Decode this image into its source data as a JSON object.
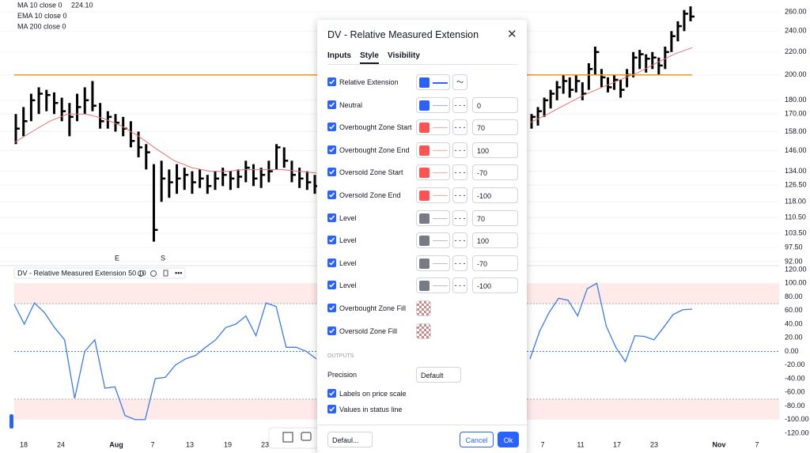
{
  "legend": [
    {
      "text": "MA 10 close 0",
      "value": "224.10"
    },
    {
      "text": "EMA 10 close 0"
    },
    {
      "text": "MA 200 close 0"
    }
  ],
  "price_axis": {
    "log": true,
    "ticks": [
      {
        "value": 260,
        "label": "260.00"
      },
      {
        "value": 240,
        "label": "240.00"
      },
      {
        "value": 220,
        "label": "220.00"
      },
      {
        "value": 200,
        "label": "200.00"
      },
      {
        "value": 180,
        "label": "180.00"
      },
      {
        "value": 170,
        "label": "170.00"
      },
      {
        "value": 158,
        "label": "158.00"
      },
      {
        "value": 146,
        "label": "146.00"
      },
      {
        "value": 134,
        "label": "134.00"
      },
      {
        "value": 126.5,
        "label": "126.50"
      },
      {
        "value": 118,
        "label": "118.00"
      },
      {
        "value": 110.5,
        "label": "110.50"
      },
      {
        "value": 103.5,
        "label": "103.50"
      },
      {
        "value": 97.5,
        "label": "97.50"
      },
      {
        "value": 92,
        "label": "92.00"
      }
    ]
  },
  "price_bars": {
    "left": [
      [
        170,
        150,
        160
      ],
      [
        175,
        155,
        165
      ],
      [
        185,
        165,
        180
      ],
      [
        190,
        170,
        185
      ],
      [
        188,
        172,
        184
      ],
      [
        186,
        170,
        178
      ],
      [
        182,
        165,
        172
      ],
      [
        178,
        155,
        168
      ],
      [
        185,
        165,
        175
      ],
      [
        190,
        170,
        180
      ],
      [
        195,
        172,
        176
      ],
      [
        178,
        160,
        165
      ],
      [
        172,
        160,
        168
      ],
      [
        170,
        158,
        164
      ],
      [
        168,
        155,
        160
      ],
      [
        165,
        148,
        152
      ],
      [
        158,
        142,
        148
      ],
      [
        150,
        135,
        145
      ],
      [
        138,
        100,
        105
      ],
      [
        140,
        118,
        130
      ],
      [
        135,
        120,
        128
      ],
      [
        138,
        122,
        130
      ],
      [
        136,
        124,
        132
      ],
      [
        134,
        122,
        128
      ],
      [
        135,
        125,
        130
      ],
      [
        132,
        122,
        126
      ],
      [
        134,
        124,
        130
      ],
      [
        136,
        126,
        132
      ],
      [
        134,
        124,
        130
      ],
      [
        135,
        125,
        131
      ],
      [
        140,
        128,
        136
      ],
      [
        138,
        126,
        130
      ],
      [
        136,
        125,
        132
      ],
      [
        140,
        128,
        134
      ],
      [
        150,
        135,
        148
      ],
      [
        148,
        136,
        140
      ],
      [
        140,
        128,
        132
      ],
      [
        136,
        125,
        130
      ],
      [
        134,
        124,
        128
      ],
      [
        132,
        122,
        126
      ]
    ],
    "right": [
      [
        170,
        160,
        168
      ],
      [
        175,
        162,
        172
      ],
      [
        182,
        168,
        180
      ],
      [
        188,
        174,
        185
      ],
      [
        195,
        180,
        190
      ],
      [
        200,
        185,
        195
      ],
      [
        198,
        182,
        188
      ],
      [
        200,
        186,
        195
      ],
      [
        194,
        180,
        185
      ],
      [
        210,
        188,
        205
      ],
      [
        225,
        200,
        220
      ],
      [
        205,
        190,
        198
      ],
      [
        198,
        186,
        190
      ],
      [
        200,
        188,
        196
      ],
      [
        196,
        182,
        188
      ],
      [
        205,
        190,
        200
      ],
      [
        220,
        198,
        215
      ],
      [
        222,
        205,
        218
      ],
      [
        218,
        202,
        214
      ],
      [
        220,
        205,
        215
      ],
      [
        215,
        200,
        208
      ],
      [
        225,
        205,
        220
      ],
      [
        240,
        220,
        235
      ],
      [
        250,
        230,
        245
      ],
      [
        262,
        240,
        258
      ],
      [
        266,
        250,
        255
      ]
    ]
  },
  "ma": {
    "color": "#e57373",
    "left": [
      151,
      158,
      165,
      170,
      170,
      167,
      162,
      155,
      147,
      140,
      136,
      134,
      134,
      135,
      135,
      135,
      134,
      133
    ],
    "right": [
      164,
      170,
      177,
      184,
      190,
      196,
      202,
      210,
      218,
      224
    ]
  },
  "level_line": {
    "value": 200,
    "color": "#f7931a"
  },
  "markers": [
    {
      "text": "E",
      "color": "#e65100"
    },
    {
      "text": "S",
      "color": "#f7931a"
    }
  ],
  "indicator": {
    "label": "DV - Relative Measured Extension 50 10",
    "color": "#3d7be8",
    "ticks": [
      {
        "value": 120,
        "label": "120.00"
      },
      {
        "value": 100,
        "label": "100.00"
      },
      {
        "value": 80,
        "label": "80.00"
      },
      {
        "value": 60,
        "label": "60.00"
      },
      {
        "value": 40,
        "label": "40.00"
      },
      {
        "value": 20,
        "label": "20.00"
      },
      {
        "value": 0,
        "label": "0.00"
      },
      {
        "value": -20,
        "label": "-20.00"
      },
      {
        "value": -40,
        "label": "-40.00"
      },
      {
        "value": -60,
        "label": "-60.00"
      },
      {
        "value": -80,
        "label": "-80.00"
      },
      {
        "value": -100,
        "label": "-100.00"
      },
      {
        "value": -120,
        "label": "-120.00"
      }
    ],
    "overbought": [
      70,
      100
    ],
    "oversold": [
      -70,
      -100
    ],
    "neutral": 0,
    "left": [
      69,
      40,
      71,
      57,
      35,
      17,
      -69,
      0,
      17,
      -54,
      -52,
      -94,
      -100,
      -100,
      -40,
      -38,
      -20,
      -11,
      -6,
      6,
      17,
      35,
      40,
      52,
      23,
      71,
      66,
      6,
      6,
      0,
      -11
    ],
    "right": [
      -11,
      29,
      57,
      78,
      75,
      52,
      92,
      100,
      37,
      6,
      -15,
      23,
      22,
      17,
      35,
      54,
      61,
      62
    ]
  },
  "time_axis": [
    "18",
    "24",
    "Aug",
    "7",
    "13",
    "19",
    "23",
    "7",
    "11",
    "17",
    "23",
    "Nov",
    "7"
  ],
  "dialog": {
    "title": "DV - Relative Measured Extension",
    "tabs": [
      "Inputs",
      "Style",
      "Visibility"
    ],
    "rows": [
      {
        "label": "Relative Extension",
        "color": "#2962ff",
        "style": "line"
      },
      {
        "label": "Neutral",
        "color": "#2962ff",
        "style": "thin",
        "input": "0"
      },
      {
        "label": "Overbought Zone Start",
        "color": "#ff5252",
        "style": "thin",
        "input": "70"
      },
      {
        "label": "Overbought Zone End",
        "color": "#ff5252",
        "style": "thin",
        "input": "100"
      },
      {
        "label": "Oversold Zone Start",
        "color": "#ff5252",
        "style": "thin",
        "input": "-70"
      },
      {
        "label": "Oversold Zone End",
        "color": "#ff5252",
        "style": "thin",
        "input": "-100"
      },
      {
        "label": "Level",
        "color": "#787b86",
        "style": "thin",
        "input": "70"
      },
      {
        "label": "Level",
        "color": "#787b86",
        "style": "thin",
        "input": "100"
      },
      {
        "label": "Level",
        "color": "#787b86",
        "style": "thin",
        "input": "-70"
      },
      {
        "label": "Level",
        "color": "#787b86",
        "style": "thin",
        "input": "-100"
      },
      {
        "label": "Overbought Zone Fill",
        "style": "fill"
      },
      {
        "label": "Oversold Zone Fill",
        "style": "fill"
      }
    ],
    "outputs": "OUTPUTS",
    "precision_label": "Precision",
    "precision_value": "Default",
    "labels_on_price_scale": "Labels on price scale",
    "values_in_status_line": "Values in status line",
    "template": "Defaul...",
    "cancel": "Cancel",
    "ok": "Ok"
  }
}
